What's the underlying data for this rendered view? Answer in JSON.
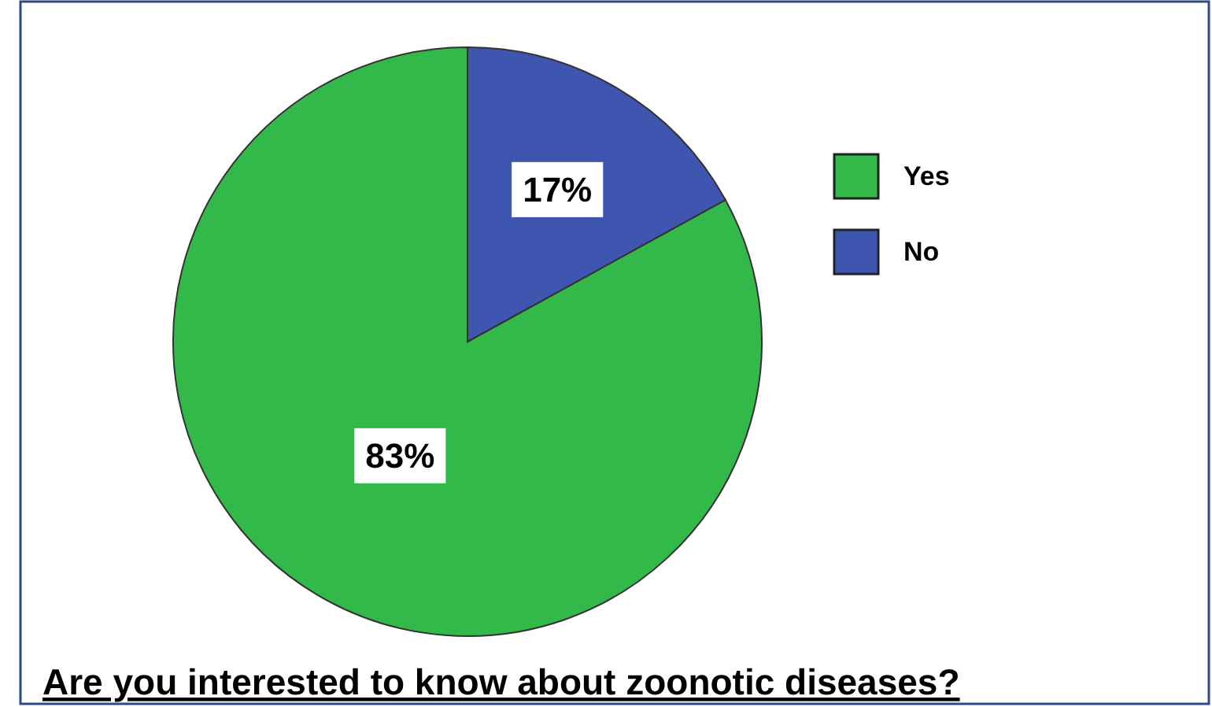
{
  "chart_data": {
    "type": "pie",
    "title": "Are you interested to know about zoonotic diseases?",
    "categories": [
      "Yes",
      "No"
    ],
    "values": [
      83,
      17
    ],
    "colors": [
      "#33b84a",
      "#3f56b0"
    ],
    "value_labels": [
      "83%",
      "17%"
    ],
    "legend": "right"
  }
}
